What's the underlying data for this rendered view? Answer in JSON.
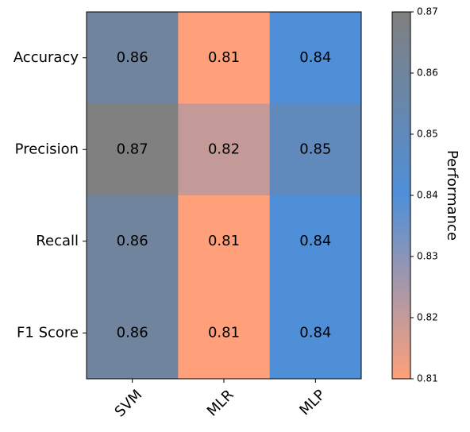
{
  "chart_data": {
    "type": "heatmap",
    "title": "",
    "x_categories": [
      "SVM",
      "MLR",
      "MLP"
    ],
    "y_categories": [
      "Accuracy",
      "Precision",
      "Recall",
      "F1 Score"
    ],
    "values": [
      [
        0.86,
        0.81,
        0.84
      ],
      [
        0.87,
        0.82,
        0.85
      ],
      [
        0.86,
        0.81,
        0.84
      ],
      [
        0.86,
        0.81,
        0.84
      ]
    ],
    "colorbar": {
      "label": "Performance",
      "min": 0.81,
      "max": 0.87,
      "ticks": [
        "0.81",
        "0.82",
        "0.83",
        "0.84",
        "0.85",
        "0.86",
        "0.87"
      ]
    },
    "colormap": {
      "low": "#ffa07a",
      "mid": "#4f8fd8",
      "high": "#808080"
    },
    "x_tick_rotation_deg": 45
  }
}
